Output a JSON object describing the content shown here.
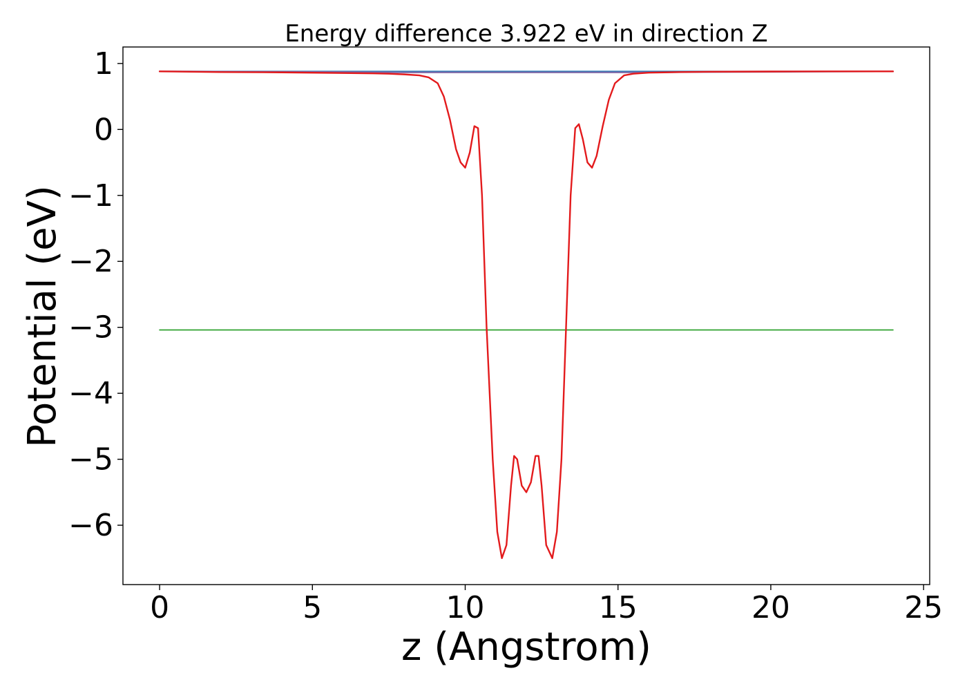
{
  "chart_data": {
    "type": "line",
    "title": "Energy difference 3.922 eV in direction Z",
    "xlabel": "z (Angstrom)",
    "ylabel": "Potential (eV)",
    "xlim": [
      -1.2,
      25.2
    ],
    "ylim": [
      -6.9,
      1.25
    ],
    "xticks": [
      0,
      5,
      10,
      15,
      20,
      25
    ],
    "xtick_labels": [
      "0",
      "5",
      "10",
      "15",
      "20",
      "25"
    ],
    "yticks": [
      1,
      0,
      -1,
      -2,
      -3,
      -4,
      -5,
      -6
    ],
    "ytick_labels": [
      "1",
      "0",
      "−1",
      "−2",
      "−3",
      "−4",
      "−5",
      "−6"
    ],
    "grid": false,
    "legend": "none",
    "colors": {
      "blue": "#1f77b4",
      "green": "#2ca02c",
      "red": "#e31a1c",
      "purple": "#7f6aa8"
    },
    "series": [
      {
        "color": "#1f77b4",
        "x": [
          0,
          24
        ],
        "y": [
          0.88,
          0.88
        ]
      },
      {
        "color": "#2ca02c",
        "x": [
          0,
          24
        ],
        "y": [
          -3.04,
          -3.04
        ]
      },
      {
        "color": "#7f6aa8",
        "x": [
          0,
          3,
          6,
          8,
          16,
          18,
          21,
          24
        ],
        "y": [
          0.88,
          0.875,
          0.87,
          0.865,
          0.865,
          0.87,
          0.875,
          0.88
        ]
      },
      {
        "color": "#e31a1c",
        "x": [
          0,
          2,
          4,
          6,
          7,
          7.5,
          8,
          8.5,
          8.8,
          9.1,
          9.3,
          9.5,
          9.7,
          9.85,
          10.0,
          10.15,
          10.3,
          10.42,
          10.55,
          10.7,
          10.9,
          11.05,
          11.2,
          11.35,
          11.5,
          11.6,
          11.7,
          11.85,
          12.0,
          12.15,
          12.3,
          12.4,
          12.5,
          12.65,
          12.85,
          13.0,
          13.15,
          13.3,
          13.45,
          13.6,
          13.72,
          13.85,
          14.0,
          14.15,
          14.3,
          14.5,
          14.7,
          14.9,
          15.2,
          15.5,
          16,
          16.5,
          17,
          18,
          20,
          22,
          24
        ],
        "y": [
          0.88,
          0.87,
          0.865,
          0.855,
          0.85,
          0.845,
          0.835,
          0.82,
          0.79,
          0.7,
          0.5,
          0.15,
          -0.3,
          -0.5,
          -0.58,
          -0.35,
          0.05,
          0.02,
          -1.0,
          -3.0,
          -5.0,
          -6.1,
          -6.5,
          -6.3,
          -5.4,
          -4.95,
          -5.0,
          -5.4,
          -5.5,
          -5.35,
          -4.95,
          -4.95,
          -5.4,
          -6.3,
          -6.5,
          -6.1,
          -5.0,
          -3.0,
          -1.0,
          0.02,
          0.08,
          -0.15,
          -0.5,
          -0.58,
          -0.4,
          0.05,
          0.45,
          0.7,
          0.82,
          0.845,
          0.86,
          0.865,
          0.87,
          0.875,
          0.878,
          0.88,
          0.88
        ]
      }
    ]
  }
}
